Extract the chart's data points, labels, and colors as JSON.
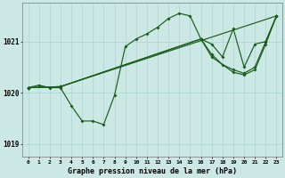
{
  "title": "Graphe pression niveau de la mer (hPa)",
  "bg_color": "#cce8e4",
  "grid_color": "#aad4d0",
  "line_color": "#1a5c1a",
  "ylim": [
    1018.75,
    1021.75
  ],
  "xlim": [
    -0.5,
    23.5
  ],
  "yticks": [
    1019,
    1020,
    1021
  ],
  "xticks": [
    0,
    1,
    2,
    3,
    4,
    5,
    6,
    7,
    8,
    9,
    10,
    11,
    12,
    13,
    14,
    15,
    16,
    17,
    18,
    19,
    20,
    21,
    22,
    23
  ],
  "line1_x": [
    0,
    1,
    2,
    3,
    4,
    5,
    6,
    7,
    8,
    9,
    10,
    11,
    12,
    13,
    14,
    15,
    16,
    17,
    18,
    19,
    20,
    21,
    22,
    23
  ],
  "line1_y": [
    1020.1,
    1020.15,
    1020.1,
    1020.1,
    1019.75,
    1019.45,
    1019.45,
    1019.38,
    1019.95,
    1020.9,
    1021.05,
    1021.15,
    1021.28,
    1021.45,
    1021.55,
    1021.5,
    1021.05,
    1020.95,
    1020.7,
    1021.25,
    1020.5,
    1020.95,
    1021.0,
    1021.5
  ],
  "line2_x": [
    0,
    3,
    23
  ],
  "line2_y": [
    1020.1,
    1020.12,
    1021.5
  ],
  "line3_x": [
    0,
    3,
    16,
    17,
    19,
    20,
    21,
    22,
    23
  ],
  "line3_y": [
    1020.1,
    1020.12,
    1021.05,
    1020.7,
    1020.4,
    1020.35,
    1020.45,
    1020.95,
    1021.5
  ],
  "line4_x": [
    0,
    3,
    16,
    17,
    18,
    19,
    20,
    21,
    22,
    23
  ],
  "line4_y": [
    1020.1,
    1020.12,
    1021.05,
    1020.75,
    1020.55,
    1020.45,
    1020.38,
    1020.5,
    1021.0,
    1021.5
  ]
}
